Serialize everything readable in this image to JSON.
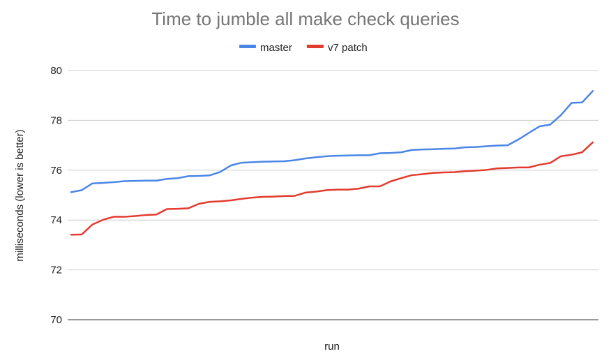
{
  "chart_data": {
    "type": "line",
    "title": "Time to jumble all make check queries",
    "xlabel": "run",
    "ylabel": "milliseconds (lower is better)",
    "ylim": [
      70,
      80
    ],
    "yticks": [
      70,
      72,
      74,
      76,
      78,
      80
    ],
    "grid": true,
    "legend_position": "top",
    "series": [
      {
        "name": "master",
        "color": "#4a86e8",
        "values": [
          75.12,
          75.2,
          75.47,
          75.49,
          75.52,
          75.56,
          75.57,
          75.58,
          75.58,
          75.65,
          75.68,
          75.76,
          75.77,
          75.79,
          75.93,
          76.19,
          76.3,
          76.32,
          76.34,
          76.35,
          76.36,
          76.4,
          76.47,
          76.52,
          76.56,
          76.58,
          76.59,
          76.6,
          76.6,
          76.68,
          76.69,
          76.72,
          76.81,
          76.83,
          76.84,
          76.86,
          76.87,
          76.92,
          76.93,
          76.96,
          76.99,
          77.0,
          77.23,
          77.5,
          77.76,
          77.83,
          78.21,
          78.7,
          78.72,
          79.18
        ]
      },
      {
        "name": "v7 patch",
        "color": "#e33b2e",
        "values": [
          73.41,
          73.42,
          73.82,
          74.01,
          74.13,
          74.13,
          74.16,
          74.2,
          74.22,
          74.44,
          74.45,
          74.47,
          74.65,
          74.73,
          74.75,
          74.79,
          74.85,
          74.9,
          74.93,
          74.94,
          74.96,
          74.97,
          75.1,
          75.14,
          75.2,
          75.22,
          75.22,
          75.26,
          75.35,
          75.35,
          75.55,
          75.68,
          75.8,
          75.84,
          75.89,
          75.91,
          75.92,
          75.96,
          75.98,
          76.01,
          76.07,
          76.09,
          76.11,
          76.11,
          76.22,
          76.29,
          76.56,
          76.62,
          76.72,
          77.12
        ]
      }
    ]
  }
}
